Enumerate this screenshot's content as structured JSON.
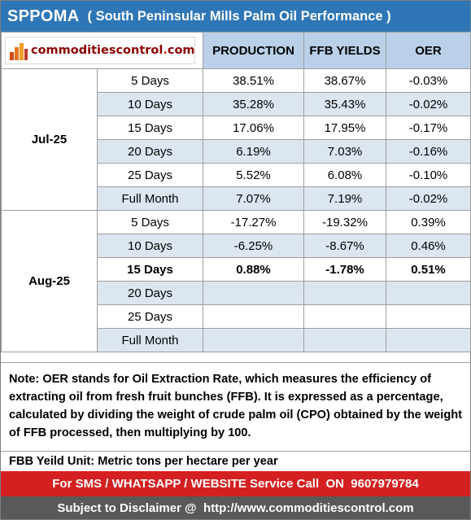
{
  "title": {
    "main": "SPPOMA",
    "subtitle": "( South Peninsular Mills Palm Oil Performance )"
  },
  "logo": {
    "text_before_dot": "commoditiescontrol",
    "text_dot": ".",
    "text_after_dot": "com"
  },
  "headers": {
    "production": "PRODUCTION",
    "ffb_yields": "FFB YIELDS",
    "oer": "OER"
  },
  "months": [
    {
      "label": "Jul-25",
      "rows": [
        {
          "period": "5 Days",
          "production": "38.51%",
          "ffb": "38.67%",
          "oer": "-0.03%"
        },
        {
          "period": "10 Days",
          "production": "35.28%",
          "ffb": "35.43%",
          "oer": "-0.02%"
        },
        {
          "period": "15 Days",
          "production": "17.06%",
          "ffb": "17.95%",
          "oer": "-0.17%"
        },
        {
          "period": "20 Days",
          "production": "6.19%",
          "ffb": "7.03%",
          "oer": "-0.16%"
        },
        {
          "period": "25 Days",
          "production": "5.52%",
          "ffb": "6.08%",
          "oer": "-0.10%"
        },
        {
          "period": "Full Month",
          "production": "7.07%",
          "ffb": "7.19%",
          "oer": "-0.02%"
        }
      ]
    },
    {
      "label": "Aug-25",
      "rows": [
        {
          "period": "5 Days",
          "production": "-17.27%",
          "ffb": "-19.32%",
          "oer": "0.39%"
        },
        {
          "period": "10 Days",
          "production": "-6.25%",
          "ffb": "-8.67%",
          "oer": "0.46%"
        },
        {
          "period": "15 Days",
          "production": "0.88%",
          "ffb": "-1.78%",
          "oer": "0.51%"
        },
        {
          "period": "20 Days",
          "production": "",
          "ffb": "",
          "oer": ""
        },
        {
          "period": "25 Days",
          "production": "",
          "ffb": "",
          "oer": ""
        },
        {
          "period": "Full Month",
          "production": "",
          "ffb": "",
          "oer": ""
        }
      ]
    }
  ],
  "note": "Note: OER stands for Oil Extraction Rate, which measures the efficiency of extracting oil from fresh fruit bunches (FFB). It is expressed as a percentage, calculated by dividing the weight of crude palm oil (CPO) obtained by the weight of FFB processed, then multiplying by 100.",
  "unit_note": "FBB Yeild Unit: Metric tons per hectare per year",
  "service": "For SMS / WHATSAPP / WEBSITE Service Call  ON  9607979784",
  "disclaimer": "Subject to Disclaimer @  http://www.commoditiescontrol.com",
  "colors": {
    "title_bg": "#2e76b6",
    "header_bg": "#b9d0e8",
    "alt_row_bg": "#dce6f1",
    "service_bg": "#d42020",
    "disclaimer_bg": "#595959",
    "logo_text": "#8b0000"
  }
}
